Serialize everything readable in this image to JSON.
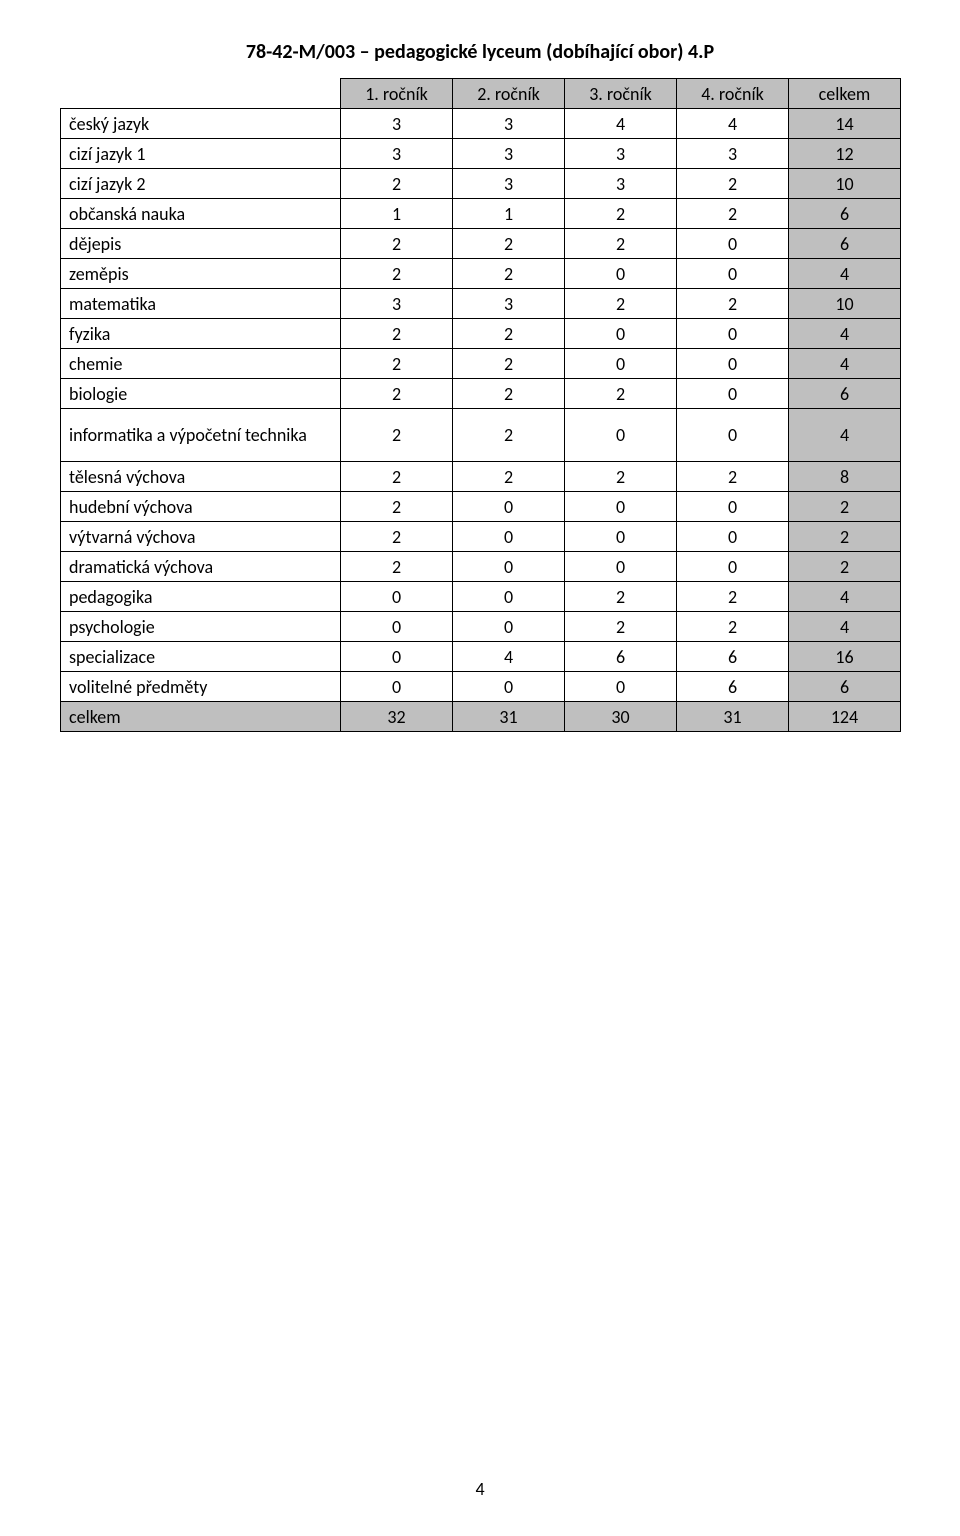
{
  "title": "78-42-M/003 – pedagogické lyceum (dobíhající obor) 4.P",
  "page_number": "4",
  "columns": [
    {
      "key": "label",
      "header": ""
    },
    {
      "key": "r1",
      "header": "1. ročník"
    },
    {
      "key": "r2",
      "header": "2. ročník"
    },
    {
      "key": "r3",
      "header": "3. ročník"
    },
    {
      "key": "r4",
      "header": "4. ročník"
    },
    {
      "key": "total",
      "header": "celkem"
    }
  ],
  "rows": [
    {
      "label": "český jazyk",
      "r1": "3",
      "r2": "3",
      "r3": "4",
      "r4": "4",
      "total": "14"
    },
    {
      "label": "cizí jazyk 1",
      "r1": "3",
      "r2": "3",
      "r3": "3",
      "r4": "3",
      "total": "12"
    },
    {
      "label": "cizí jazyk 2",
      "r1": "2",
      "r2": "3",
      "r3": "3",
      "r4": "2",
      "total": "10"
    },
    {
      "label": "občanská nauka",
      "r1": "1",
      "r2": "1",
      "r3": "2",
      "r4": "2",
      "total": "6"
    },
    {
      "label": "dějepis",
      "r1": "2",
      "r2": "2",
      "r3": "2",
      "r4": "0",
      "total": "6"
    },
    {
      "label": "zeměpis",
      "r1": "2",
      "r2": "2",
      "r3": "0",
      "r4": "0",
      "total": "4"
    },
    {
      "label": "matematika",
      "r1": "3",
      "r2": "3",
      "r3": "2",
      "r4": "2",
      "total": "10"
    },
    {
      "label": "fyzika",
      "r1": "2",
      "r2": "2",
      "r3": "0",
      "r4": "0",
      "total": "4"
    },
    {
      "label": "chemie",
      "r1": "2",
      "r2": "2",
      "r3": "0",
      "r4": "0",
      "total": "4"
    },
    {
      "label": "biologie",
      "r1": "2",
      "r2": "2",
      "r3": "2",
      "r4": "0",
      "total": "6"
    },
    {
      "label": "informatika a výpočetní technika",
      "tall": true,
      "r1": "2",
      "r2": "2",
      "r3": "0",
      "r4": "0",
      "total": "4"
    },
    {
      "label": "tělesná výchova",
      "r1": "2",
      "r2": "2",
      "r3": "2",
      "r4": "2",
      "total": "8"
    },
    {
      "label": "hudební výchova",
      "r1": "2",
      "r2": "0",
      "r3": "0",
      "r4": "0",
      "total": "2"
    },
    {
      "label": "výtvarná výchova",
      "r1": "2",
      "r2": "0",
      "r3": "0",
      "r4": "0",
      "total": "2"
    },
    {
      "label": "dramatická výchova",
      "r1": "2",
      "r2": "0",
      "r3": "0",
      "r4": "0",
      "total": "2"
    },
    {
      "label": "pedagogika",
      "r1": "0",
      "r2": "0",
      "r3": "2",
      "r4": "2",
      "total": "4"
    },
    {
      "label": "psychologie",
      "r1": "0",
      "r2": "0",
      "r3": "2",
      "r4": "2",
      "total": "4"
    },
    {
      "label": "specializace",
      "r1": "0",
      "r2": "4",
      "r3": "6",
      "r4": "6",
      "total": "16"
    },
    {
      "label": "volitelné předměty",
      "r1": "0",
      "r2": "0",
      "r3": "0",
      "r4": "6",
      "total": "6"
    }
  ],
  "total_row": {
    "label": "celkem",
    "r1": "32",
    "r2": "31",
    "r3": "30",
    "r4": "31",
    "total": "124"
  },
  "colors": {
    "shade": "#bfbfbf",
    "border": "#000000",
    "background": "#ffffff",
    "text": "#000000"
  },
  "fonts": {
    "title_size": 20,
    "cell_size": 18
  }
}
